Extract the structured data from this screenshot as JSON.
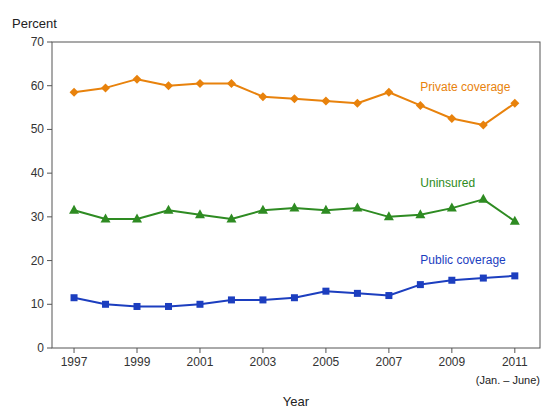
{
  "chart_data": {
    "type": "line",
    "x": [
      1997,
      1998,
      1999,
      2000,
      2001,
      2002,
      2003,
      2004,
      2005,
      2006,
      2007,
      2008,
      2009,
      2010,
      2011
    ],
    "series": [
      {
        "name": "Private coverage",
        "color": "#E8820C",
        "marker": "diamond",
        "values": [
          58.5,
          59.5,
          61.5,
          60.0,
          60.5,
          60.5,
          57.5,
          57.0,
          56.5,
          56.0,
          58.5,
          55.5,
          52.5,
          51.0,
          56.0
        ]
      },
      {
        "name": "Uninsured",
        "color": "#2E8B22",
        "marker": "triangle",
        "values": [
          31.5,
          29.5,
          29.5,
          31.5,
          30.5,
          29.5,
          31.5,
          32.0,
          31.5,
          32.0,
          30.0,
          30.5,
          32.0,
          34.0,
          29.0
        ]
      },
      {
        "name": "Public coverage",
        "color": "#1C3EBF",
        "marker": "square",
        "values": [
          11.5,
          10.0,
          9.5,
          9.5,
          10.0,
          11.0,
          11.0,
          11.5,
          13.0,
          12.5,
          12.0,
          14.5,
          15.5,
          16.0,
          16.5
        ]
      }
    ],
    "xlabel": "Year",
    "ylabel": "Percent",
    "xlim": [
      1996.3,
      2011.8
    ],
    "xticks": [
      1997,
      1999,
      2001,
      2003,
      2005,
      2007,
      2009,
      2011
    ],
    "ylim": [
      0,
      70
    ],
    "yticks": [
      0,
      10,
      20,
      30,
      40,
      50,
      60,
      70
    ],
    "annotations": [
      "(Jan. – June)"
    ],
    "grid": false
  }
}
